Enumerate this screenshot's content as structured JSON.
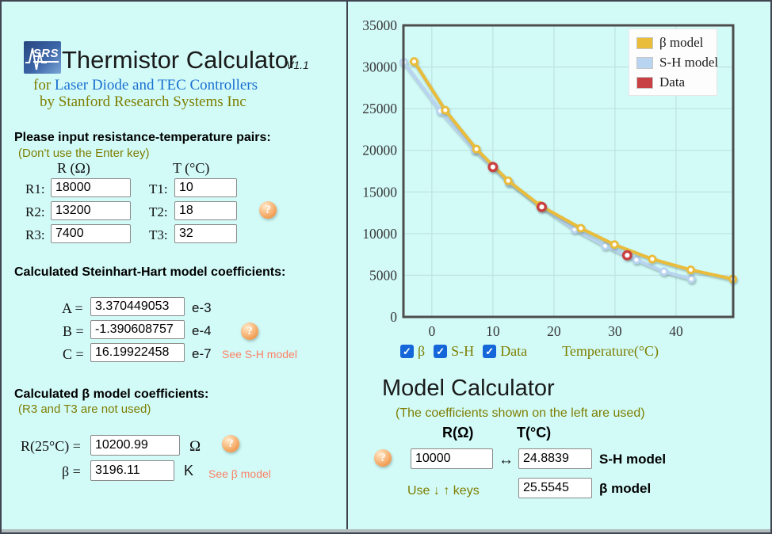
{
  "header": {
    "logo_text": "SRS",
    "title": "Thermistor Calculator",
    "version": "V1.1",
    "subtitle_prefix": "for ",
    "subtitle_main": "Laser Diode and TEC Controllers",
    "byline": "by Stanford Research Systems Inc"
  },
  "inputs_section": {
    "heading": "Please input resistance-temperature pairs:",
    "note": "(Don't use the Enter key)",
    "col_r": "R (Ω)",
    "col_t": "T (°C)",
    "rows": [
      {
        "r_label": "R1:",
        "r_value": "18000",
        "t_label": "T1:",
        "t_value": "10"
      },
      {
        "r_label": "R2:",
        "r_value": "13200",
        "t_label": "T2:",
        "t_value": "18"
      },
      {
        "r_label": "R3:",
        "r_value": "7400",
        "t_label": "T3:",
        "t_value": "32"
      }
    ],
    "help_icon": "?"
  },
  "sh_section": {
    "heading": "Calculated Steinhart-Hart model coefficients:",
    "rows": [
      {
        "label": "A =",
        "value": "3.370449053",
        "exp": "e-3"
      },
      {
        "label": "B =",
        "value": "-1.390608757",
        "exp": "e-4"
      },
      {
        "label": "C =",
        "value": "16.19922458",
        "exp": "e-7"
      }
    ],
    "help_icon": "?",
    "link": "See S-H model"
  },
  "beta_section": {
    "heading": "Calculated β model coefficients:",
    "note": "(R3 and T3 are not used)",
    "r25_label": "R(25°C) =",
    "r25_value": "10200.99",
    "r25_unit": "Ω",
    "beta_label": "β =",
    "beta_value": "3196.11",
    "beta_unit": "K",
    "help_icon": "?",
    "link": "See β model"
  },
  "chart_controls": {
    "checkboxes": [
      {
        "label": "β",
        "checked": true,
        "glyph": "✓"
      },
      {
        "label": "S-H",
        "checked": true,
        "glyph": "✓"
      },
      {
        "label": "Data",
        "checked": true,
        "glyph": "✓"
      }
    ],
    "axis_label": "Temperature(°C)"
  },
  "calculator": {
    "title": "Model Calculator",
    "note": "(The coefficients shown on the left are used)",
    "col_r": "R(Ω)",
    "col_t": "T(°C)",
    "help_icon": "?",
    "r_value": "10000",
    "arrow": "↔",
    "sh_value": "24.8839",
    "sh_label": "S-H model",
    "keys_hint": "Use ↓ ↑ keys",
    "beta_value": "25.5545",
    "beta_label": "β model"
  },
  "chart_data": {
    "type": "line",
    "xlabel": "Temperature(°C)",
    "ylabel": "",
    "xlim": [
      -4.65,
      49.35
    ],
    "ylim": [
      0,
      35000
    ],
    "xticks": [
      0,
      10,
      20,
      30,
      40
    ],
    "yticks": [
      0,
      5000,
      10000,
      15000,
      20000,
      25000,
      30000,
      35000
    ],
    "grid": true,
    "legend_position": "top-right",
    "legend": [
      {
        "label": "β model",
        "color": "#e9bd3a"
      },
      {
        "label": "S-H model",
        "color": "#b9d4f0"
      },
      {
        "label": "Data",
        "color": "#c84043"
      }
    ],
    "series": [
      {
        "name": "S-H model",
        "color": "#b9d4f0",
        "style": "line",
        "points": [
          [
            -4.6,
            30570
          ],
          [
            1.4,
            24720
          ],
          [
            7.0,
            20050
          ],
          [
            12.7,
            16140
          ],
          [
            18,
            13200
          ],
          [
            23.4,
            10520
          ],
          [
            28.4,
            8530
          ],
          [
            33.5,
            6850
          ],
          [
            38.0,
            5450
          ],
          [
            42.5,
            4560
          ]
        ]
      },
      {
        "name": "β model",
        "color": "#e9bd3a",
        "style": "line",
        "points": [
          [
            -2.9,
            30660
          ],
          [
            2.2,
            24815
          ],
          [
            7.3,
            20150
          ],
          [
            12.5,
            16350
          ],
          [
            17.7,
            13390
          ],
          [
            24.4,
            10650
          ],
          [
            29.9,
            8685
          ],
          [
            36.1,
            6945
          ],
          [
            42.4,
            5650
          ],
          [
            49.3,
            4550
          ]
        ]
      },
      {
        "name": "Data",
        "color": "#c84043",
        "style": "scatter",
        "points": [
          [
            10,
            18000
          ],
          [
            18,
            13200
          ],
          [
            32,
            7400
          ]
        ]
      }
    ]
  }
}
